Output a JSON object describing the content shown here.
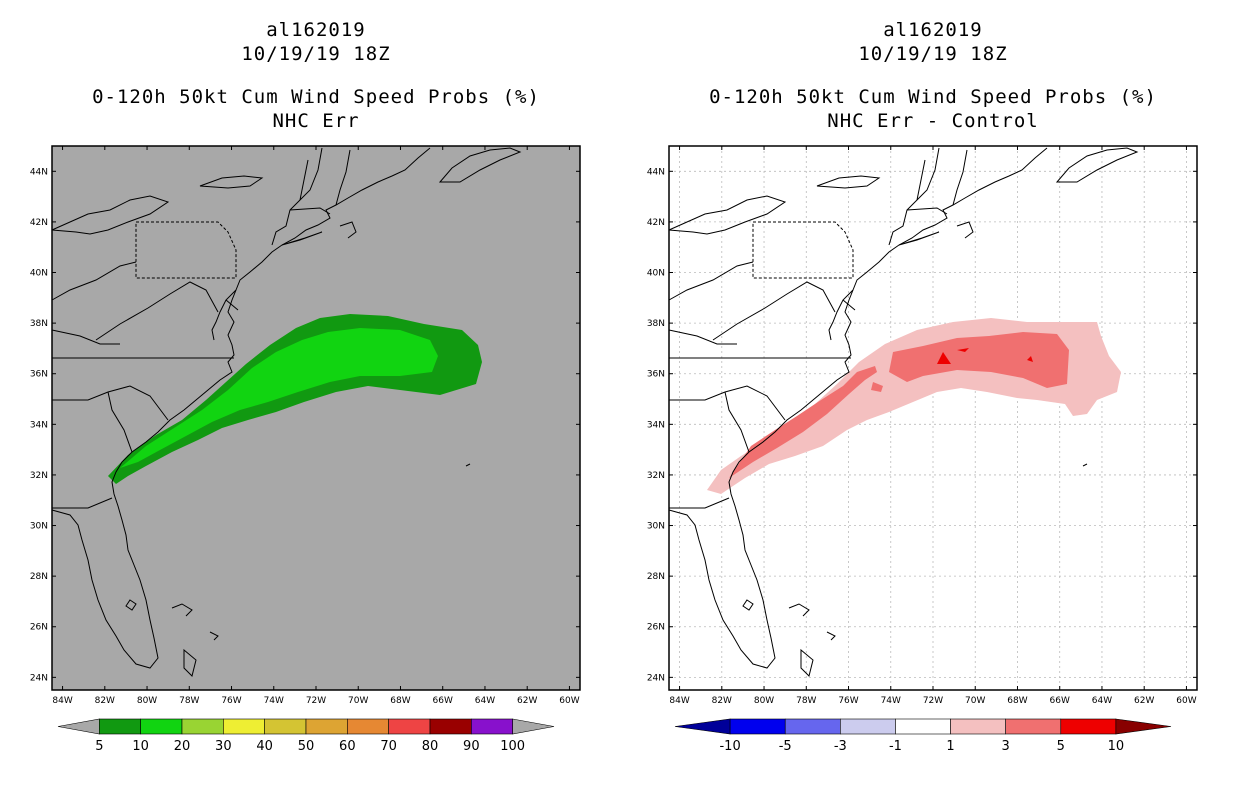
{
  "left_panel": {
    "storm_id": "al162019",
    "datetime": "10/19/19 18Z",
    "product": "0-120h 50kt Cum Wind Speed Probs (%)",
    "subtitle": "NHC Err",
    "background": "#a8a8a8",
    "colorbar": {
      "colors": [
        "#a8a8a8",
        "#119911",
        "#11d411",
        "#99d433",
        "#eeee33",
        "#d4c433",
        "#dda433",
        "#e68833",
        "#ee4444",
        "#990000",
        "#8811cc",
        "#a8a8a8"
      ],
      "labels": [
        "5",
        "10",
        "20",
        "30",
        "40",
        "50",
        "60",
        "70",
        "80",
        "90",
        "100"
      ]
    }
  },
  "right_panel": {
    "storm_id": "al162019",
    "datetime": "10/19/19 18Z",
    "product": "0-120h 50kt Cum Wind Speed Probs (%)",
    "subtitle": "NHC Err - Control",
    "background": "#ffffff",
    "colorbar": {
      "colors": [
        "#000099",
        "#0000ee",
        "#6666ee",
        "#ccccee",
        "#ffffff",
        "#f4c0c0",
        "#f07070",
        "#ee0000",
        "#880000"
      ],
      "labels": [
        "-10",
        "-5",
        "-3",
        "-1",
        "1",
        "3",
        "5",
        "10"
      ]
    }
  },
  "map": {
    "lat_labels": [
      "44N",
      "42N",
      "40N",
      "38N",
      "36N",
      "34N",
      "32N",
      "30N",
      "28N",
      "26N",
      "24N"
    ],
    "lon_labels": [
      "84W",
      "82W",
      "80W",
      "78W",
      "76W",
      "74W",
      "72W",
      "70W",
      "68W",
      "66W",
      "64W",
      "62W",
      "60W"
    ]
  }
}
